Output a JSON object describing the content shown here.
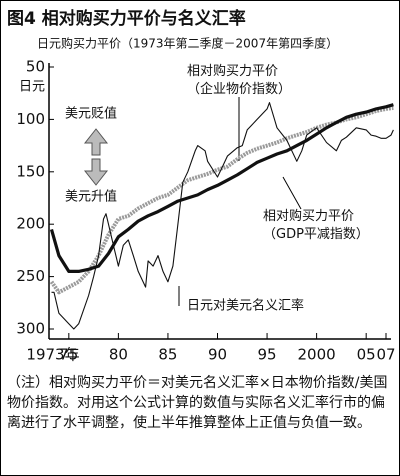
{
  "chart_data": {
    "type": "line",
    "title": "图4 相对购买力平价与名义汇率",
    "subtitle": "日元购买力平价（1973年第二季度－2007年第四季度）",
    "y_label": "日元",
    "ylim": [
      50,
      300
    ],
    "y_inverted": true,
    "yticks": [
      50,
      100,
      150,
      200,
      250,
      300
    ],
    "xlim": [
      1973,
      2007
    ],
    "xticks": [
      {
        "value": 1973,
        "label": "1973年"
      },
      {
        "value": 1975,
        "label": "75"
      },
      {
        "value": 1980,
        "label": "80"
      },
      {
        "value": 1985,
        "label": "85"
      },
      {
        "value": 1990,
        "label": "90"
      },
      {
        "value": 1995,
        "label": "95"
      },
      2000,
      {
        "value": 2005,
        "label": "05"
      },
      {
        "value": 2007,
        "label": "07"
      }
    ],
    "annotations": [
      "美元贬值",
      "美元升值"
    ],
    "series": [
      {
        "name": "相对购买力平价（企业物价指数）",
        "color": "#9a9a9a",
        "x": [
          1973.25,
          1974,
          1975,
          1976,
          1977,
          1978,
          1979,
          1980,
          1981,
          1982,
          1983,
          1984,
          1985,
          1986,
          1987,
          1988,
          1989,
          1990,
          1991,
          1992,
          1993,
          1994,
          1995,
          1996,
          1997,
          1998,
          1999,
          2000,
          2001,
          2002,
          2003,
          2004,
          2005,
          2006,
          2007,
          2007.75
        ],
        "values": [
          255,
          265,
          260,
          255,
          245,
          230,
          210,
          195,
          192,
          185,
          180,
          175,
          172,
          165,
          158,
          155,
          152,
          148,
          145,
          138,
          132,
          128,
          125,
          122,
          118,
          115,
          112,
          108,
          105,
          103,
          100,
          98,
          95,
          92,
          90,
          89
        ]
      },
      {
        "name": "相对购买力平价（GDP平减指数）",
        "color": "#111111",
        "x": [
          1973.25,
          1974,
          1975,
          1976,
          1977,
          1978,
          1979,
          1980,
          1981,
          1982,
          1983,
          1984,
          1985,
          1986,
          1987,
          1988,
          1989,
          1990,
          1991,
          1992,
          1993,
          1994,
          1995,
          1996,
          1997,
          1998,
          1999,
          2000,
          2001,
          2002,
          2003,
          2004,
          2005,
          2006,
          2007,
          2007.75
        ],
        "values": [
          205,
          230,
          245,
          245,
          243,
          240,
          228,
          212,
          205,
          197,
          192,
          188,
          183,
          178,
          175,
          172,
          167,
          163,
          158,
          153,
          147,
          141,
          137,
          133,
          130,
          125,
          120,
          114,
          108,
          103,
          98,
          95,
          93,
          90,
          88,
          86
        ]
      },
      {
        "name": "日元对美元名义汇率",
        "color": "#111111",
        "x": [
          1973.25,
          1973.5,
          1974,
          1975,
          1975.5,
          1976,
          1977,
          1977.5,
          1978,
          1978.5,
          1978.75,
          1979,
          1979.5,
          1980,
          1980.5,
          1981,
          1981.5,
          1982,
          1982.75,
          1983,
          1983.5,
          1984,
          1984.5,
          1985,
          1985.5,
          1986,
          1986.5,
          1987,
          1987.75,
          1988,
          1988.75,
          1989,
          1990,
          1990.5,
          1991,
          1992,
          1992.5,
          1993,
          1993.5,
          1994,
          1995,
          1995.25,
          1995.75,
          1996,
          1997,
          1998,
          1998.5,
          1999,
          2000,
          2001,
          2002,
          2002.5,
          2003,
          2004,
          2005,
          2005.5,
          2006,
          2006.5,
          2007,
          2007.5,
          2007.75
        ],
        "values": [
          265,
          265,
          285,
          295,
          300,
          295,
          268,
          250,
          230,
          195,
          190,
          200,
          220,
          240,
          220,
          215,
          230,
          245,
          260,
          235,
          240,
          230,
          245,
          255,
          240,
          200,
          160,
          150,
          130,
          125,
          130,
          140,
          155,
          145,
          135,
          127,
          125,
          110,
          105,
          100,
          90,
          84,
          100,
          108,
          120,
          140,
          130,
          115,
          108,
          122,
          130,
          120,
          117,
          108,
          110,
          115,
          116,
          118,
          118,
          115,
          110
        ]
      }
    ]
  },
  "note": {
    "label": "（注）",
    "text": "相对购买力平价＝对美元名义汇率×日本物价指数/美国物价指数。对用这个公式计算的数值与实际名义汇率行市的偏离进行了水平调整，使上半年推算整体上正值与负值一致。"
  }
}
